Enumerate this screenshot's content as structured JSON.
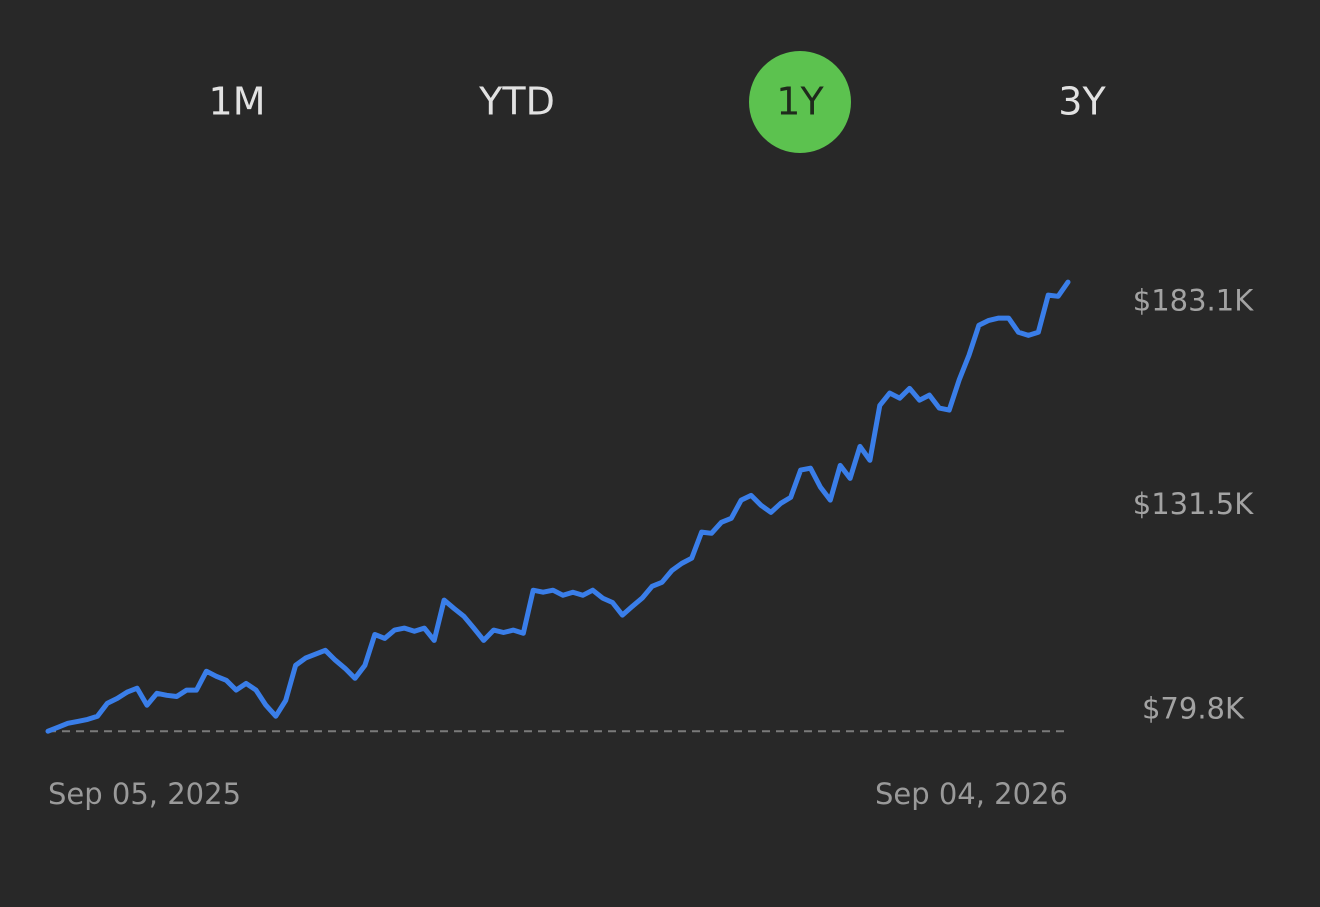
{
  "tabs": [
    "1M",
    "YTD",
    "1Y",
    "3Y"
  ],
  "selected_tab": 2,
  "chart_data": {
    "type": "line",
    "categories": [
      "Sep 05, 2025",
      null,
      null,
      null,
      null,
      null,
      null,
      null,
      null,
      null,
      null,
      null,
      null,
      null,
      null,
      null,
      null,
      null,
      null,
      null,
      null,
      null,
      null,
      null,
      null,
      null,
      null,
      null,
      null,
      null,
      null,
      null,
      null,
      null,
      null,
      null,
      null,
      null,
      null,
      null,
      null,
      null,
      null,
      null,
      null,
      null,
      null,
      null,
      null,
      null,
      null,
      null,
      null,
      null,
      null,
      null,
      null,
      null,
      null,
      null,
      null,
      null,
      null,
      null,
      null,
      null,
      null,
      null,
      null,
      null,
      null,
      null,
      null,
      null,
      null,
      null,
      null,
      null,
      null,
      null,
      null,
      null,
      null,
      null,
      null,
      null,
      null,
      null,
      null,
      null,
      null,
      null,
      null,
      null,
      null,
      null,
      null,
      null,
      null,
      null,
      null,
      null,
      null,
      "Sep 04, 2026"
    ],
    "values": [
      74.5,
      75.5,
      76.5,
      77.0,
      77.5,
      78.3,
      81.6,
      82.8,
      84.4,
      85.4,
      81.1,
      84.1,
      83.6,
      83.3,
      84.9,
      84.9,
      89.7,
      88.4,
      87.4,
      84.9,
      86.6,
      84.9,
      81.1,
      78.3,
      82.3,
      91.2,
      93.0,
      94.0,
      95.0,
      92.5,
      90.4,
      87.9,
      91.2,
      99.0,
      98.0,
      100.1,
      100.6,
      99.8,
      100.6,
      97.5,
      107.7,
      105.6,
      103.6,
      100.6,
      97.5,
      100.1,
      99.5,
      100.1,
      99.3,
      110.2,
      109.7,
      110.2,
      108.9,
      109.7,
      108.9,
      110.2,
      108.2,
      107.1,
      103.9,
      106.1,
      108.2,
      111.2,
      112.2,
      115.2,
      117.0,
      118.3,
      124.9,
      124.6,
      127.4,
      128.4,
      133.0,
      134.2,
      131.7,
      129.9,
      132.2,
      133.7,
      140.6,
      141.1,
      136.3,
      133.0,
      141.8,
      138.5,
      146.6,
      143.1,
      157.0,
      160.1,
      158.8,
      161.3,
      158.3,
      159.6,
      156.3,
      155.8,
      163.4,
      169.7,
      177.3,
      178.5,
      179.1,
      179.1,
      175.5,
      174.7,
      175.5,
      184.9,
      184.6,
      188.2
    ],
    "color": "#3a7ee9",
    "ylim": [
      70,
      190
    ],
    "yticks": [
      {
        "value": 79.8,
        "label": "$79.8K"
      },
      {
        "value": 131.5,
        "label": "$131.5K"
      },
      {
        "value": 183.1,
        "label": "$183.1K"
      }
    ]
  }
}
